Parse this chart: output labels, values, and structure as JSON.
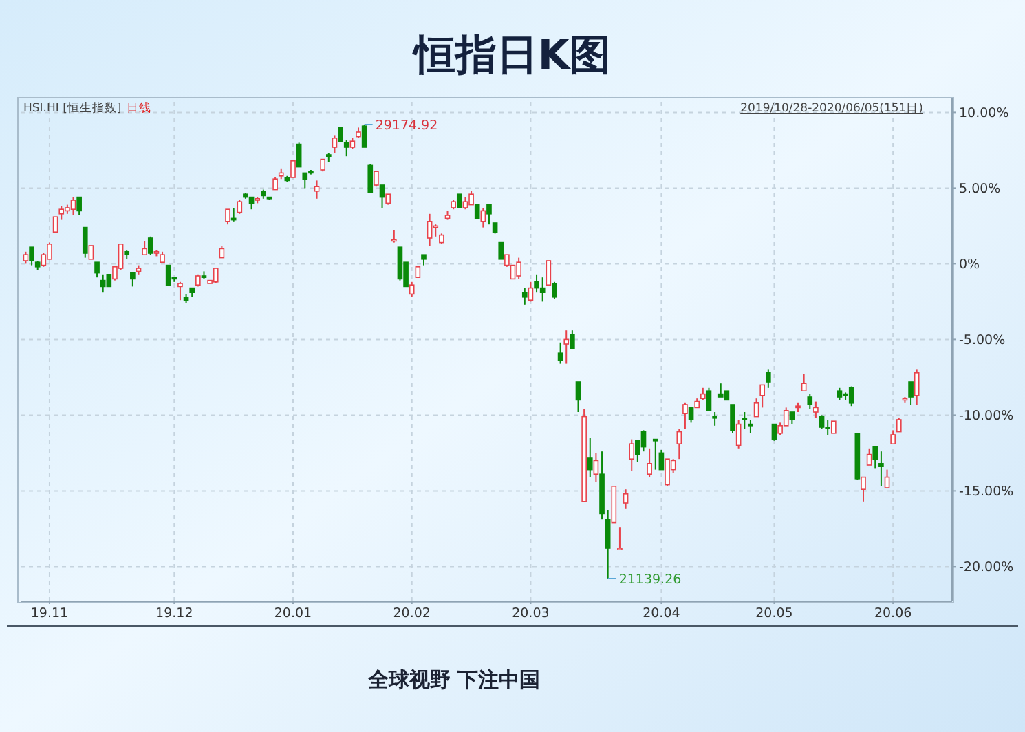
{
  "chart_data": {
    "type": "candlestick",
    "title": "恒指日K图",
    "subtitle": "HSI.HI [恒生指数]",
    "annotations": [
      "日线",
      "2019/10/28-2020/06/05(151日)",
      "全球视野 下注中国",
      "29174.92",
      "21139.26"
    ],
    "categories": [
      null,
      null,
      null,
      null,
      "19.11",
      null,
      null,
      null,
      null,
      null,
      null,
      null,
      null,
      null,
      null,
      null,
      null,
      null,
      null,
      null,
      null,
      null,
      null,
      null,
      null,
      "19.12",
      null,
      null,
      null,
      null,
      null,
      null,
      null,
      null,
      null,
      null,
      null,
      null,
      null,
      null,
      null,
      null,
      null,
      null,
      null,
      "20.01",
      null,
      null,
      null,
      null,
      null,
      null,
      null,
      null,
      null,
      null,
      null,
      null,
      null,
      null,
      null,
      null,
      null,
      null,
      null,
      "20.02",
      null,
      null,
      null,
      null,
      null,
      null,
      null,
      null,
      null,
      null,
      null,
      null,
      null,
      null,
      null,
      null,
      null,
      null,
      null,
      "20.03",
      null,
      null,
      null,
      null,
      null,
      null,
      null,
      null,
      null,
      null,
      null,
      null,
      null,
      null,
      null,
      null,
      null,
      null,
      null,
      null,
      null,
      "20.04",
      null,
      null,
      null,
      null,
      null,
      null,
      null,
      null,
      null,
      null,
      null,
      null,
      null,
      null,
      null,
      null,
      null,
      null,
      "20.05",
      null,
      null,
      null,
      null,
      null,
      null,
      null,
      null,
      null,
      null,
      null,
      null,
      null,
      null,
      null,
      null,
      null,
      null,
      null,
      "20.06",
      null,
      null,
      null,
      null
    ],
    "ohlc": [
      [
        0.2,
        0.8,
        0,
        0.6
      ],
      [
        1.1,
        1.1,
        -0.1,
        0.2
      ],
      [
        0.1,
        0.2,
        -0.4,
        -0.2
      ],
      [
        -0.1,
        0.7,
        -0.2,
        0.6
      ],
      [
        0.3,
        1.4,
        0.3,
        1.3
      ],
      [
        2.1,
        3.1,
        2.1,
        3.1
      ],
      [
        3.3,
        3.8,
        2.9,
        3.6
      ],
      [
        3.5,
        3.9,
        3.3,
        3.7
      ],
      [
        3.6,
        4.4,
        3.2,
        4.2
      ],
      [
        4.4,
        4.4,
        3.2,
        3.5
      ],
      [
        2.4,
        2.4,
        0.4,
        0.7
      ],
      [
        0.3,
        1.2,
        0.3,
        1.2
      ],
      [
        0.1,
        0.1,
        -0.9,
        -0.6
      ],
      [
        -1.1,
        -0.7,
        -1.9,
        -1.5
      ],
      [
        -0.7,
        -0.7,
        -1.5,
        -1.5
      ],
      [
        -1.0,
        -0.2,
        -1.1,
        -0.2
      ],
      [
        -0.3,
        1.3,
        -0.4,
        1.3
      ],
      [
        0.8,
        0.9,
        0.3,
        0.6
      ],
      [
        -0.6,
        -0.6,
        -1.5,
        -1.0
      ],
      [
        -0.5,
        -0.1,
        -0.7,
        -0.3
      ],
      [
        0.6,
        1.5,
        0.6,
        1.0
      ],
      [
        1.7,
        1.8,
        0.6,
        0.7
      ],
      [
        0.7,
        0.9,
        0.5,
        0.8
      ],
      [
        0.1,
        0.8,
        0.1,
        0.6
      ],
      [
        -0.1,
        -0.1,
        -1.4,
        -1.4
      ],
      [
        -0.9,
        -0.9,
        -1.2,
        -1.0
      ],
      [
        -1.5,
        -1.2,
        -2.4,
        -1.3
      ],
      [
        -2.2,
        -2.0,
        -2.6,
        -2.4
      ],
      [
        -1.6,
        -1.6,
        -2.2,
        -1.9
      ],
      [
        -1.4,
        -0.7,
        -1.5,
        -0.8
      ],
      [
        -0.8,
        -0.5,
        -1.0,
        -0.9
      ],
      [
        -1.3,
        -1.1,
        -1.3,
        -1.1
      ],
      [
        -1.2,
        -0.3,
        -1.3,
        -0.3
      ],
      [
        0.4,
        1.2,
        0.4,
        1.0
      ],
      [
        2.8,
        3.6,
        2.6,
        3.6
      ],
      [
        3.0,
        3.7,
        2.8,
        2.9
      ],
      [
        3.4,
        4.2,
        3.3,
        4.1
      ],
      [
        4.6,
        4.7,
        4.3,
        4.4
      ],
      [
        4.4,
        4.4,
        3.6,
        4.0
      ],
      [
        4.2,
        4.4,
        4.0,
        4.3
      ],
      [
        4.8,
        4.9,
        4.3,
        4.5
      ],
      [
        4.4,
        4.4,
        4.2,
        4.3
      ],
      [
        4.9,
        5.7,
        4.9,
        5.6
      ],
      [
        5.8,
        6.3,
        5.6,
        6.0
      ],
      [
        5.7,
        5.8,
        5.4,
        5.5
      ],
      [
        5.7,
        6.8,
        5.7,
        6.8
      ],
      [
        7.9,
        8.0,
        6.4,
        6.4
      ],
      [
        6.0,
        6.0,
        5.0,
        5.6
      ],
      [
        6.1,
        6.2,
        5.9,
        6.0
      ],
      [
        4.8,
        5.5,
        4.3,
        5.1
      ],
      [
        6.2,
        6.9,
        6.1,
        6.9
      ],
      [
        7.2,
        7.3,
        6.7,
        7.1
      ],
      [
        7.7,
        8.5,
        7.3,
        8.3
      ],
      [
        9.0,
        9.0,
        8.1,
        8.1
      ],
      [
        8.0,
        8.2,
        7.1,
        7.7
      ],
      [
        7.7,
        8.3,
        7.6,
        8.1
      ],
      [
        8.4,
        9.0,
        8.3,
        8.7
      ],
      [
        9.1,
        9.2,
        7.7,
        7.7
      ],
      [
        6.5,
        6.6,
        4.7,
        4.7
      ],
      [
        5.2,
        6.1,
        5.1,
        6.1
      ],
      [
        5.2,
        5.2,
        3.7,
        4.4
      ],
      [
        4.0,
        4.6,
        3.9,
        4.6
      ],
      [
        1.5,
        2.2,
        1.4,
        1.6
      ],
      [
        1.1,
        1.1,
        -1.1,
        -1.0
      ],
      [
        0.1,
        0.1,
        -1.5,
        -1.5
      ],
      [
        -2.0,
        -1.2,
        -2.2,
        -1.4
      ],
      [
        -0.9,
        -0.2,
        -0.9,
        -0.2
      ],
      [
        0.6,
        0.6,
        -0.1,
        0.3
      ],
      [
        1.7,
        3.3,
        1.2,
        2.8
      ],
      [
        2.4,
        2.6,
        1.8,
        2.5
      ],
      [
        1.4,
        2.0,
        1.3,
        1.9
      ],
      [
        3.0,
        3.5,
        2.9,
        3.2
      ],
      [
        3.7,
        4.2,
        3.6,
        4.1
      ],
      [
        4.6,
        4.6,
        3.7,
        3.7
      ],
      [
        3.7,
        4.4,
        3.6,
        4.1
      ],
      [
        3.9,
        4.8,
        3.9,
        4.6
      ],
      [
        3.9,
        3.9,
        3.0,
        3.0
      ],
      [
        2.8,
        3.7,
        2.4,
        3.5
      ],
      [
        3.9,
        3.9,
        2.6,
        3.3
      ],
      [
        2.7,
        2.7,
        2.0,
        2.1
      ],
      [
        1.4,
        1.4,
        0.3,
        0.3
      ],
      [
        -0.1,
        0.6,
        -0.2,
        0.6
      ],
      [
        -1.0,
        -0.1,
        -1.0,
        -0.1
      ],
      [
        -0.8,
        0.4,
        -1.0,
        0.1
      ],
      [
        -1.9,
        -1.6,
        -2.7,
        -2.2
      ],
      [
        -2.4,
        -1.2,
        -2.5,
        -1.6
      ],
      [
        -1.2,
        -0.7,
        -1.9,
        -1.6
      ],
      [
        -1.6,
        -0.9,
        -2.5,
        -1.9
      ],
      [
        -1.4,
        0.2,
        -1.4,
        0.2
      ],
      [
        -1.3,
        -1.2,
        -2.3,
        -2.2
      ],
      [
        -5.9,
        -5.2,
        -6.6,
        -6.4
      ],
      [
        -5.3,
        -4.4,
        -6.6,
        -5.0
      ],
      [
        -4.7,
        -4.4,
        -5.6,
        -5.6
      ],
      [
        -7.8,
        -7.8,
        -9.8,
        -9.0
      ],
      [
        -15.7,
        -9.6,
        -15.7,
        -10.1
      ],
      [
        -12.8,
        -11.5,
        -14.1,
        -13.6
      ],
      [
        -13.9,
        -12.5,
        -14.4,
        -13.0
      ],
      [
        -13.9,
        -12.4,
        -16.9,
        -16.5
      ],
      [
        -16.9,
        -16.3,
        -20.8,
        -18.8
      ],
      [
        -17.1,
        -14.7,
        -17.1,
        -14.7
      ],
      [
        -18.9,
        -17.4,
        -18.9,
        -18.8
      ],
      [
        -15.8,
        -14.9,
        -16.2,
        -15.2
      ],
      [
        -12.9,
        -11.6,
        -13.7,
        -11.9
      ],
      [
        -11.7,
        -11.7,
        -13.1,
        -12.6
      ],
      [
        -11.1,
        -11.0,
        -12.4,
        -12.1
      ],
      [
        -13.9,
        -12.2,
        -14.1,
        -13.2
      ],
      [
        -11.6,
        -11.6,
        -13.6,
        -11.7
      ],
      [
        -12.5,
        -12.3,
        -13.6,
        -13.6
      ],
      [
        -14.6,
        -12.9,
        -14.7,
        -12.9
      ],
      [
        -13.6,
        -12.9,
        -13.8,
        -13.0
      ],
      [
        -11.9,
        -10.9,
        -12.9,
        -11.1
      ],
      [
        -9.9,
        -9.2,
        -10.9,
        -9.3
      ],
      [
        -9.5,
        -9.5,
        -10.5,
        -10.3
      ],
      [
        -9.5,
        -8.9,
        -9.5,
        -9.1
      ],
      [
        -8.9,
        -8.2,
        -9.0,
        -8.6
      ],
      [
        -8.4,
        -8.2,
        -9.7,
        -9.7
      ],
      [
        -10.1,
        -9.8,
        -10.7,
        -10.2
      ],
      [
        -8.6,
        -7.9,
        -8.8,
        -8.8
      ],
      [
        -8.4,
        -8.4,
        -9.0,
        -9.0
      ],
      [
        -9.3,
        -9.3,
        -11.2,
        -11.0
      ],
      [
        -12.0,
        -10.3,
        -12.2,
        -10.6
      ],
      [
        -10.2,
        -9.8,
        -10.9,
        -10.3
      ],
      [
        -10.6,
        -10.3,
        -11.2,
        -10.7
      ],
      [
        -10.1,
        -8.9,
        -10.1,
        -9.2
      ],
      [
        -8.7,
        -8.0,
        -9.5,
        -8.0
      ],
      [
        -7.2,
        -7.0,
        -8.2,
        -7.8
      ],
      [
        -10.6,
        -10.6,
        -11.7,
        -11.6
      ],
      [
        -11.2,
        -10.5,
        -11.3,
        -10.7
      ],
      [
        -10.7,
        -9.5,
        -10.7,
        -9.7
      ],
      [
        -9.8,
        -9.8,
        -10.6,
        -10.3
      ],
      [
        -9.5,
        -9.2,
        -9.8,
        -9.4
      ],
      [
        -8.4,
        -7.3,
        -8.4,
        -7.9
      ],
      [
        -8.8,
        -8.6,
        -9.6,
        -9.3
      ],
      [
        -9.8,
        -9.1,
        -10.2,
        -9.5
      ],
      [
        -10.1,
        -10.0,
        -10.9,
        -10.8
      ],
      [
        -10.8,
        -10.3,
        -11.3,
        -10.9
      ],
      [
        -11.2,
        -10.4,
        -11.2,
        -10.4
      ],
      [
        -8.4,
        -8.2,
        -9.0,
        -8.8
      ],
      [
        -8.6,
        -8.5,
        -9.0,
        -8.7
      ],
      [
        -8.2,
        -8.1,
        -9.4,
        -9.2
      ],
      [
        -11.2,
        -11.2,
        -14.3,
        -14.2
      ],
      [
        -14.9,
        -14.1,
        -15.7,
        -14.1
      ],
      [
        -13.3,
        -12.2,
        -13.3,
        -12.6
      ],
      [
        -12.1,
        -12.1,
        -13.5,
        -12.9
      ],
      [
        -13.2,
        -12.4,
        -14.7,
        -13.4
      ],
      [
        -14.8,
        -13.6,
        -14.8,
        -14.1
      ],
      [
        -11.9,
        -11.0,
        -11.9,
        -11.3
      ],
      [
        -11.1,
        -10.2,
        -11.1,
        -10.3
      ],
      [
        -9.0,
        -8.8,
        -9.2,
        -8.9
      ],
      [
        -7.8,
        -7.8,
        -9.3,
        -8.8
      ],
      [
        -8.7,
        -7.0,
        -9.3,
        -7.2
      ]
    ],
    "colors": [
      "#e8424b",
      "#0a8a0a",
      "#0a8a0a",
      "#e8424b",
      "#e8424b",
      "#e8424b",
      "#e8424b",
      "#e8424b",
      "#e8424b",
      "#0a8a0a",
      "#0a8a0a",
      "#e8424b",
      "#0a8a0a",
      "#0a8a0a",
      "#0a8a0a",
      "#e8424b",
      "#e8424b",
      "#0a8a0a",
      "#0a8a0a",
      "#e8424b",
      "#e8424b",
      "#0a8a0a",
      "#e8424b",
      "#e8424b",
      "#0a8a0a",
      "#0a8a0a",
      "#e8424b",
      "#0a8a0a",
      "#0a8a0a",
      "#e8424b",
      "#0a8a0a",
      "#e8424b",
      "#e8424b",
      "#e8424b",
      "#e8424b",
      "#0a8a0a",
      "#e8424b",
      "#0a8a0a",
      "#0a8a0a",
      "#e8424b",
      "#0a8a0a",
      "#0a8a0a",
      "#e8424b",
      "#e8424b",
      "#0a8a0a",
      "#e8424b",
      "#0a8a0a",
      "#0a8a0a",
      "#0a8a0a",
      "#e8424b",
      "#e8424b",
      "#0a8a0a",
      "#e8424b",
      "#0a8a0a",
      "#0a8a0a",
      "#e8424b",
      "#e8424b",
      "#0a8a0a",
      "#0a8a0a",
      "#e8424b",
      "#0a8a0a",
      "#e8424b",
      "#e8424b",
      "#0a8a0a",
      "#0a8a0a",
      "#e8424b",
      "#e8424b",
      "#0a8a0a",
      "#e8424b",
      "#e8424b",
      "#e8424b",
      "#e8424b",
      "#e8424b",
      "#0a8a0a",
      "#e8424b",
      "#e8424b",
      "#0a8a0a",
      "#e8424b",
      "#0a8a0a",
      "#0a8a0a",
      "#0a8a0a",
      "#e8424b",
      "#e8424b",
      "#e8424b",
      "#0a8a0a",
      "#e8424b",
      "#0a8a0a",
      "#0a8a0a",
      "#e8424b",
      "#0a8a0a",
      "#0a8a0a",
      "#e8424b",
      "#0a8a0a",
      "#0a8a0a",
      "#e8424b",
      "#0a8a0a",
      "#e8424b",
      "#0a8a0a",
      "#0a8a0a",
      "#e8424b",
      "#e8424b",
      "#e8424b",
      "#e8424b",
      "#0a8a0a",
      "#0a8a0a",
      "#e8424b",
      "#0a8a0a",
      "#0a8a0a",
      "#e8424b",
      "#e8424b",
      "#e8424b",
      "#e8424b",
      "#0a8a0a",
      "#e8424b",
      "#e8424b",
      "#0a8a0a",
      "#0a8a0a",
      "#0a8a0a",
      "#0a8a0a",
      "#0a8a0a",
      "#e8424b",
      "#0a8a0a",
      "#0a8a0a",
      "#e8424b",
      "#e8424b",
      "#0a8a0a",
      "#0a8a0a",
      "#e8424b",
      "#e8424b",
      "#0a8a0a",
      "#e8424b",
      "#e8424b",
      "#0a8a0a",
      "#e8424b",
      "#0a8a0a",
      "#0a8a0a",
      "#e8424b",
      "#0a8a0a",
      "#0a8a0a",
      "#0a8a0a",
      "#0a8a0a",
      "#e8424b",
      "#e8424b",
      "#0a8a0a",
      "#0a8a0a",
      "#e8424b",
      "#e8424b",
      "#e8424b",
      "#e8424b",
      "#0a8a0a",
      "#e8424b"
    ],
    "ylim": [
      -22.3,
      10.7
    ],
    "yticks": [
      {
        "value": 10,
        "label": "10.00%"
      },
      {
        "value": 5,
        "label": "5.00%"
      },
      {
        "value": 0,
        "label": "0%"
      },
      {
        "value": -5,
        "label": "-5.00%"
      },
      {
        "value": -10,
        "label": "-10.00%"
      },
      {
        "value": -15,
        "label": "-15.00%"
      },
      {
        "value": -20,
        "label": "-20.00%"
      }
    ],
    "grid": true
  }
}
